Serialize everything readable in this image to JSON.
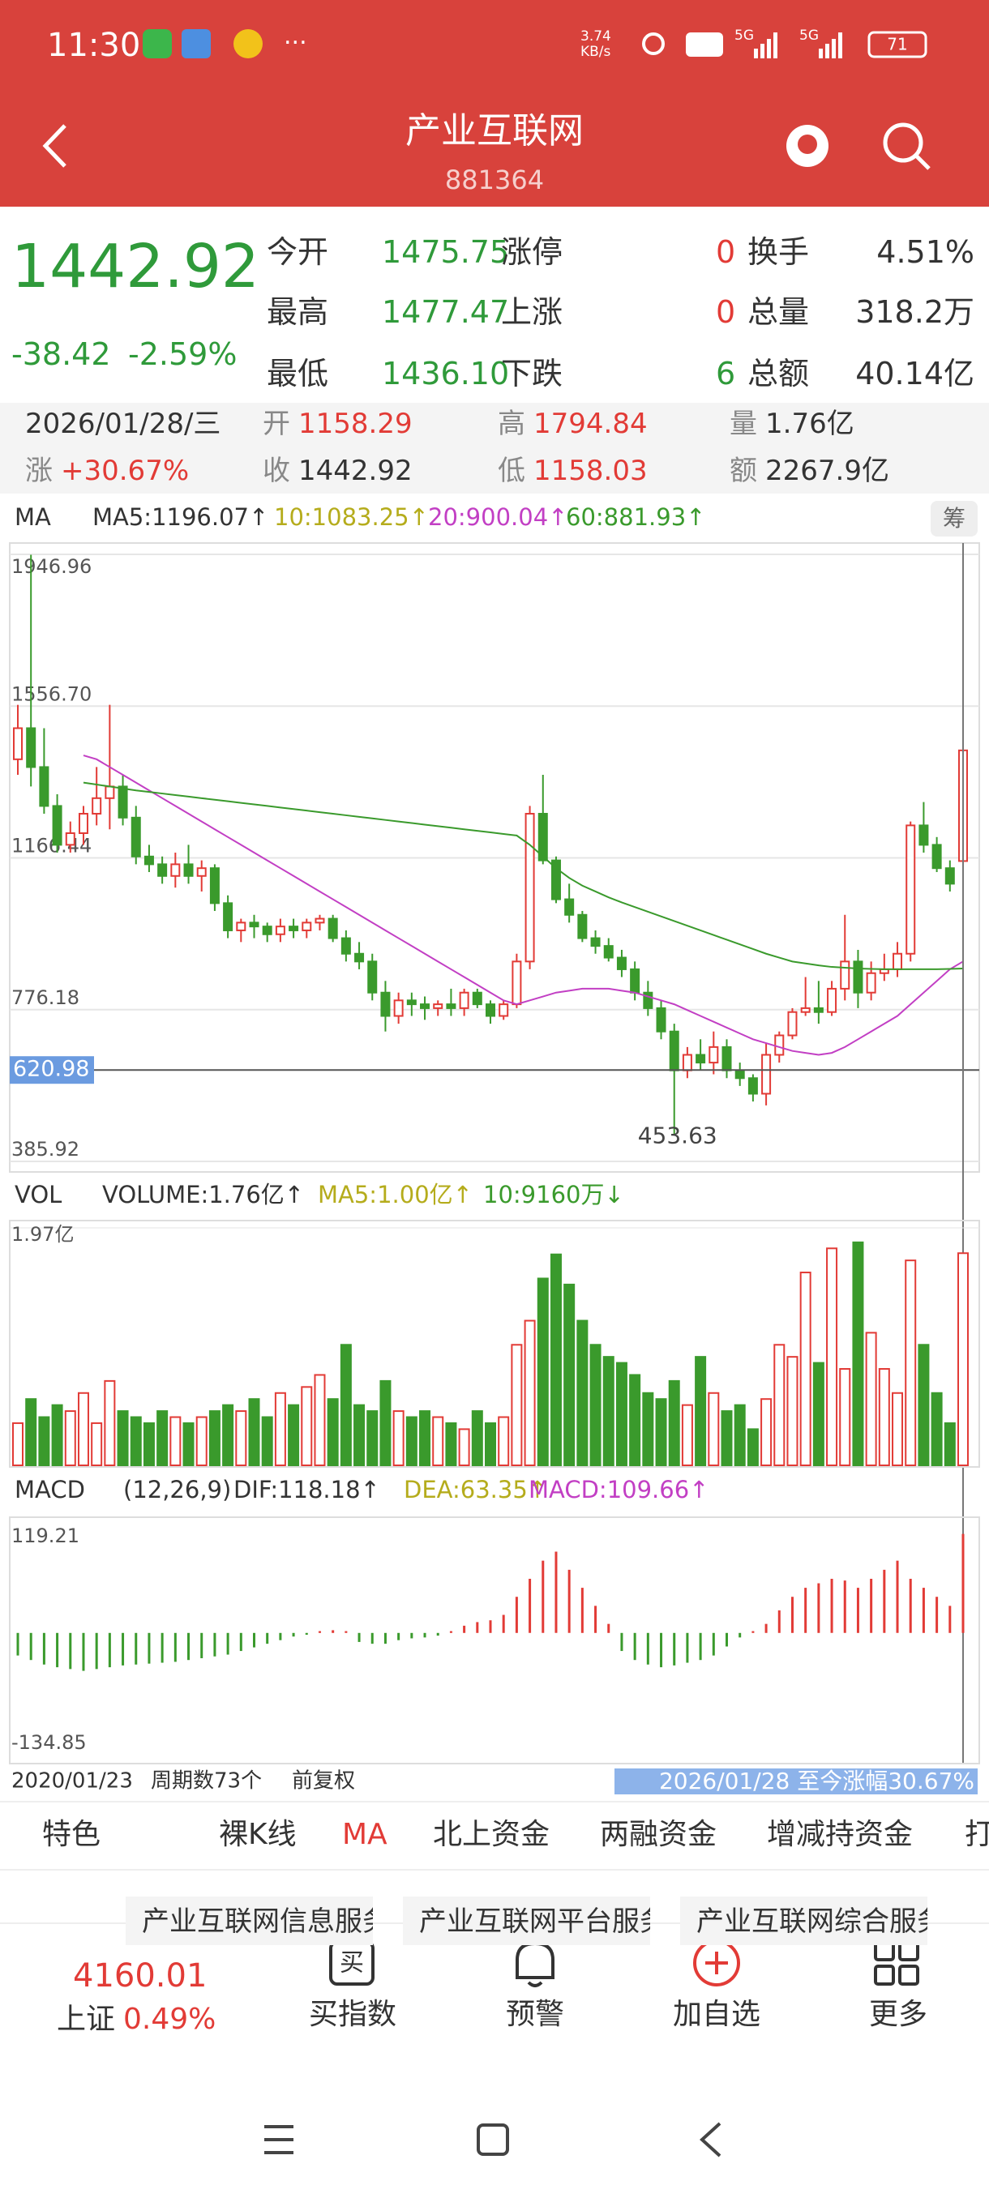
{
  "status": {
    "time": "11:30",
    "speed": "3.74 KB/s",
    "battery": "71",
    "net": "5G"
  },
  "header": {
    "title": "产业互联网",
    "code": "881364"
  },
  "quote": {
    "price": "1442.92",
    "change": "-38.42",
    "pct": "-2.59%",
    "rows": [
      [
        "今开",
        "1475.75",
        "涨停",
        "0",
        "换手",
        "4.51%"
      ],
      [
        "最高",
        "1477.47",
        "上涨",
        "0",
        "总量",
        "318.2万"
      ],
      [
        "最低",
        "1436.10",
        "下跌",
        "6",
        "总额",
        "40.14亿"
      ]
    ]
  },
  "info": {
    "date": "2026/01/28/三",
    "row1": [
      [
        "开",
        "1158.29"
      ],
      [
        "高",
        "1794.84"
      ],
      [
        "量",
        "1.76亿"
      ]
    ],
    "row2": [
      [
        "涨",
        "+30.67%"
      ],
      [
        "收",
        "1442.92"
      ],
      [
        "低",
        "1158.03"
      ],
      [
        "额",
        "2267.9亿"
      ]
    ]
  },
  "chart_data": {
    "type": "candlestick",
    "legend": {
      "label": "MA",
      "ma5": "MA5:1196.07↑",
      "ma10": "10:1083.25↑",
      "ma20": "20:900.04↑",
      "ma60": "60:881.93↑",
      "chip": "筹"
    },
    "ylim": [
      385.92,
      1946.96
    ],
    "yticks": [
      385.92,
      {
        "value": 776.18,
        "label": "776.18"
      },
      1166.44,
      {
        "value": 1556.7,
        "label": "1556.70"
      },
      1946.96
    ],
    "price_line": 620.98,
    "candles": [
      [
        1420,
        1560,
        1380,
        1500
      ],
      [
        1500,
        1946,
        1350,
        1400
      ],
      [
        1400,
        1500,
        1280,
        1300
      ],
      [
        1300,
        1330,
        1180,
        1200
      ],
      [
        1200,
        1260,
        1180,
        1230
      ],
      [
        1230,
        1300,
        1200,
        1280
      ],
      [
        1280,
        1400,
        1250,
        1320
      ],
      [
        1320,
        1560,
        1240,
        1350
      ],
      [
        1350,
        1380,
        1250,
        1270
      ],
      [
        1270,
        1300,
        1150,
        1170
      ],
      [
        1170,
        1200,
        1130,
        1150
      ],
      [
        1150,
        1170,
        1100,
        1120
      ],
      [
        1120,
        1180,
        1090,
        1150
      ],
      [
        1150,
        1200,
        1100,
        1120
      ],
      [
        1120,
        1160,
        1080,
        1140
      ],
      [
        1140,
        1150,
        1030,
        1050
      ],
      [
        1050,
        1070,
        960,
        980
      ],
      [
        980,
        1010,
        950,
        1000
      ],
      [
        1000,
        1020,
        960,
        990
      ],
      [
        990,
        1000,
        950,
        970
      ],
      [
        970,
        1010,
        950,
        990
      ],
      [
        990,
        1010,
        960,
        980
      ],
      [
        980,
        1010,
        960,
        1000
      ],
      [
        1000,
        1020,
        980,
        1010
      ],
      [
        1010,
        1020,
        950,
        960
      ],
      [
        960,
        980,
        900,
        920
      ],
      [
        920,
        950,
        880,
        900
      ],
      [
        900,
        920,
        800,
        820
      ],
      [
        820,
        850,
        720,
        760
      ],
      [
        760,
        820,
        740,
        800
      ],
      [
        800,
        820,
        760,
        790
      ],
      [
        790,
        810,
        750,
        780
      ],
      [
        780,
        800,
        760,
        790
      ],
      [
        790,
        830,
        760,
        780
      ],
      [
        780,
        830,
        760,
        820
      ],
      [
        820,
        830,
        780,
        790
      ],
      [
        790,
        800,
        740,
        760
      ],
      [
        760,
        800,
        750,
        790
      ],
      [
        790,
        920,
        780,
        900
      ],
      [
        900,
        1300,
        880,
        1280
      ],
      [
        1280,
        1380,
        1150,
        1160
      ],
      [
        1160,
        1170,
        1050,
        1060
      ],
      [
        1060,
        1100,
        1000,
        1020
      ],
      [
        1020,
        1030,
        950,
        960
      ],
      [
        960,
        980,
        920,
        940
      ],
      [
        940,
        960,
        900,
        910
      ],
      [
        910,
        930,
        860,
        880
      ],
      [
        880,
        900,
        800,
        820
      ],
      [
        820,
        850,
        760,
        780
      ],
      [
        780,
        800,
        700,
        720
      ],
      [
        720,
        740,
        453.63,
        620
      ],
      [
        620,
        680,
        600,
        660
      ],
      [
        660,
        700,
        620,
        640
      ],
      [
        640,
        720,
        610,
        680
      ],
      [
        680,
        700,
        600,
        620
      ],
      [
        620,
        640,
        580,
        600
      ],
      [
        600,
        610,
        540,
        560
      ],
      [
        560,
        690,
        530,
        660
      ],
      [
        660,
        720,
        640,
        710
      ],
      [
        710,
        780,
        700,
        770
      ],
      [
        770,
        860,
        760,
        780
      ],
      [
        780,
        850,
        740,
        770
      ],
      [
        770,
        850,
        760,
        830
      ],
      [
        830,
        1020,
        800,
        900
      ],
      [
        900,
        930,
        780,
        820
      ],
      [
        820,
        900,
        800,
        870
      ],
      [
        870,
        920,
        850,
        880
      ],
      [
        880,
        950,
        860,
        920
      ],
      [
        920,
        1260,
        900,
        1250
      ],
      [
        1250,
        1310,
        1180,
        1200
      ],
      [
        1200,
        1220,
        1130,
        1140
      ],
      [
        1140,
        1160,
        1080,
        1100
      ],
      [
        1158.29,
        1794.84,
        1158.03,
        1442.92
      ]
    ],
    "ma20": [
      null,
      null,
      null,
      null,
      null,
      1430,
      1420,
      1400,
      1380,
      1360,
      1340,
      1320,
      1300,
      1280,
      1260,
      1240,
      1220,
      1200,
      1180,
      1160,
      1140,
      1120,
      1100,
      1080,
      1060,
      1040,
      1020,
      1000,
      980,
      960,
      940,
      920,
      900,
      880,
      860,
      840,
      820,
      800,
      790,
      800,
      810,
      820,
      825,
      830,
      830,
      830,
      825,
      820,
      810,
      800,
      790,
      775,
      760,
      745,
      730,
      715,
      700,
      690,
      680,
      670,
      665,
      660,
      665,
      680,
      700,
      720,
      740,
      760,
      790,
      820,
      850,
      880,
      900.04
    ],
    "ma60": [
      null,
      null,
      null,
      null,
      null,
      1360,
      1355,
      1350,
      1345,
      1340,
      1336,
      1332,
      1328,
      1324,
      1320,
      1316,
      1312,
      1308,
      1304,
      1300,
      1296,
      1292,
      1288,
      1284,
      1280,
      1276,
      1272,
      1268,
      1264,
      1260,
      1256,
      1252,
      1248,
      1244,
      1240,
      1236,
      1232,
      1228,
      1224,
      1200,
      1170,
      1140,
      1115,
      1095,
      1080,
      1065,
      1052,
      1040,
      1028,
      1016,
      1004,
      992,
      980,
      968,
      956,
      944,
      932,
      920,
      910,
      900,
      895,
      890,
      886,
      884,
      882,
      881,
      880,
      880,
      880,
      880,
      880,
      881,
      881.93
    ],
    "volume": {
      "legend": {
        "label": "VOL",
        "volume": "VOLUME:1.76亿↑",
        "ma5": "MA5:1.00亿↑",
        "ma10": "10:9160万↓"
      },
      "ylim": [
        0,
        1.97
      ],
      "ytick": {
        "value": 1.97,
        "label": "1.97亿"
      },
      "values": [
        0.35,
        0.55,
        0.4,
        0.5,
        0.45,
        0.6,
        0.35,
        0.7,
        0.45,
        0.4,
        0.35,
        0.45,
        0.4,
        0.35,
        0.4,
        0.45,
        0.5,
        0.45,
        0.55,
        0.4,
        0.6,
        0.5,
        0.65,
        0.75,
        0.55,
        1.0,
        0.5,
        0.45,
        0.7,
        0.45,
        0.4,
        0.45,
        0.4,
        0.35,
        0.3,
        0.45,
        0.35,
        0.4,
        1.0,
        1.2,
        1.55,
        1.75,
        1.5,
        1.2,
        1.0,
        0.9,
        0.85,
        0.75,
        0.6,
        0.55,
        0.7,
        0.5,
        0.9,
        0.6,
        0.45,
        0.5,
        0.3,
        0.55,
        1.0,
        0.9,
        1.6,
        0.85,
        1.8,
        0.8,
        1.85,
        1.1,
        0.8,
        0.6,
        1.7,
        1.0,
        0.6,
        0.35,
        1.76
      ]
    },
    "macd": {
      "legend": {
        "label": "MACD",
        "params": "(12,26,9)",
        "dif": "DIF:118.18↑",
        "dea": "DEA:63.35↑",
        "macd": "MACD:109.66↑"
      },
      "ylim": [
        -134.85,
        119.21
      ],
      "yticks": [
        -134.85,
        119.21
      ],
      "values": [
        -25,
        -30,
        -35,
        -38,
        -40,
        -42,
        -40,
        -38,
        -36,
        -35,
        -34,
        -33,
        -32,
        -30,
        -28,
        -26,
        -24,
        -20,
        -16,
        -12,
        -8,
        -4,
        -2,
        2,
        3,
        2,
        -10,
        -12,
        -12,
        -8,
        -6,
        -5,
        -3,
        2,
        8,
        12,
        14,
        20,
        40,
        60,
        80,
        90,
        70,
        50,
        30,
        10,
        -20,
        -30,
        -35,
        -38,
        -36,
        -33,
        -30,
        -25,
        -15,
        -5,
        2,
        10,
        25,
        40,
        50,
        55,
        60,
        58,
        50,
        60,
        70,
        80,
        60,
        50,
        40,
        30,
        109.66
      ]
    },
    "footer": {
      "start": "2020/01/23",
      "periods": "周期数73个",
      "adjust": "前复权",
      "range": "2026/01/28 至今涨幅30.67%"
    }
  },
  "tabs": [
    "特色",
    "裸K线",
    "MA",
    "北上资金",
    "两融资金",
    "增减持资金",
    "打"
  ],
  "cards": [
    "产业互联网信息服务",
    "产业互联网平台服务",
    "产业互联网综合服务"
  ],
  "nav": {
    "index_value": "4160.01",
    "index_name": "上证",
    "index_pct": "0.49%",
    "items": [
      "买指数",
      "预警",
      "加自选",
      "更多"
    ]
  }
}
